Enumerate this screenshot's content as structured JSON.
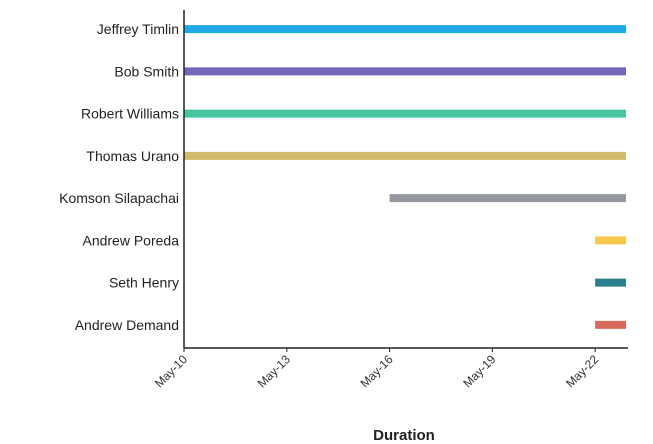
{
  "chart_data": {
    "type": "bar",
    "orientation": "horizontal",
    "title": "",
    "xlabel": "Duration",
    "ylabel": "",
    "categories": [
      "Jeffrey Timlin",
      "Bob Smith",
      "Robert Williams",
      "Thomas Urano",
      "Komson Silapachai",
      "Andrew Poreda",
      "Seth Henry",
      "Andrew Demand"
    ],
    "x_ticks": [
      "May-10",
      "May-13",
      "May-16",
      "May-19",
      "May-22"
    ],
    "xlim": [
      "May-10",
      "May-22.9"
    ],
    "bars": [
      {
        "name": "Jeffrey Timlin",
        "start": "May-10",
        "end": "May-22.9",
        "color": "#1fa7e6"
      },
      {
        "name": "Bob Smith",
        "start": "May-10",
        "end": "May-22.9",
        "color": "#7466b8"
      },
      {
        "name": "Robert Williams",
        "start": "May-10",
        "end": "May-22.9",
        "color": "#45c6a0"
      },
      {
        "name": "Thomas Urano",
        "start": "May-10",
        "end": "May-22.9",
        "color": "#d1bb6a"
      },
      {
        "name": "Komson Silapachai",
        "start": "May-16",
        "end": "May-22.9",
        "color": "#94979e"
      },
      {
        "name": "Andrew Poreda",
        "start": "May-22",
        "end": "May-22.9",
        "color": "#f5c84c"
      },
      {
        "name": "Seth Henry",
        "start": "May-22",
        "end": "May-22.9",
        "color": "#2a7f8f"
      },
      {
        "name": "Andrew Demand",
        "start": "May-22",
        "end": "May-22.9",
        "color": "#d86a5c"
      }
    ],
    "grid": false,
    "legend": "none"
  }
}
